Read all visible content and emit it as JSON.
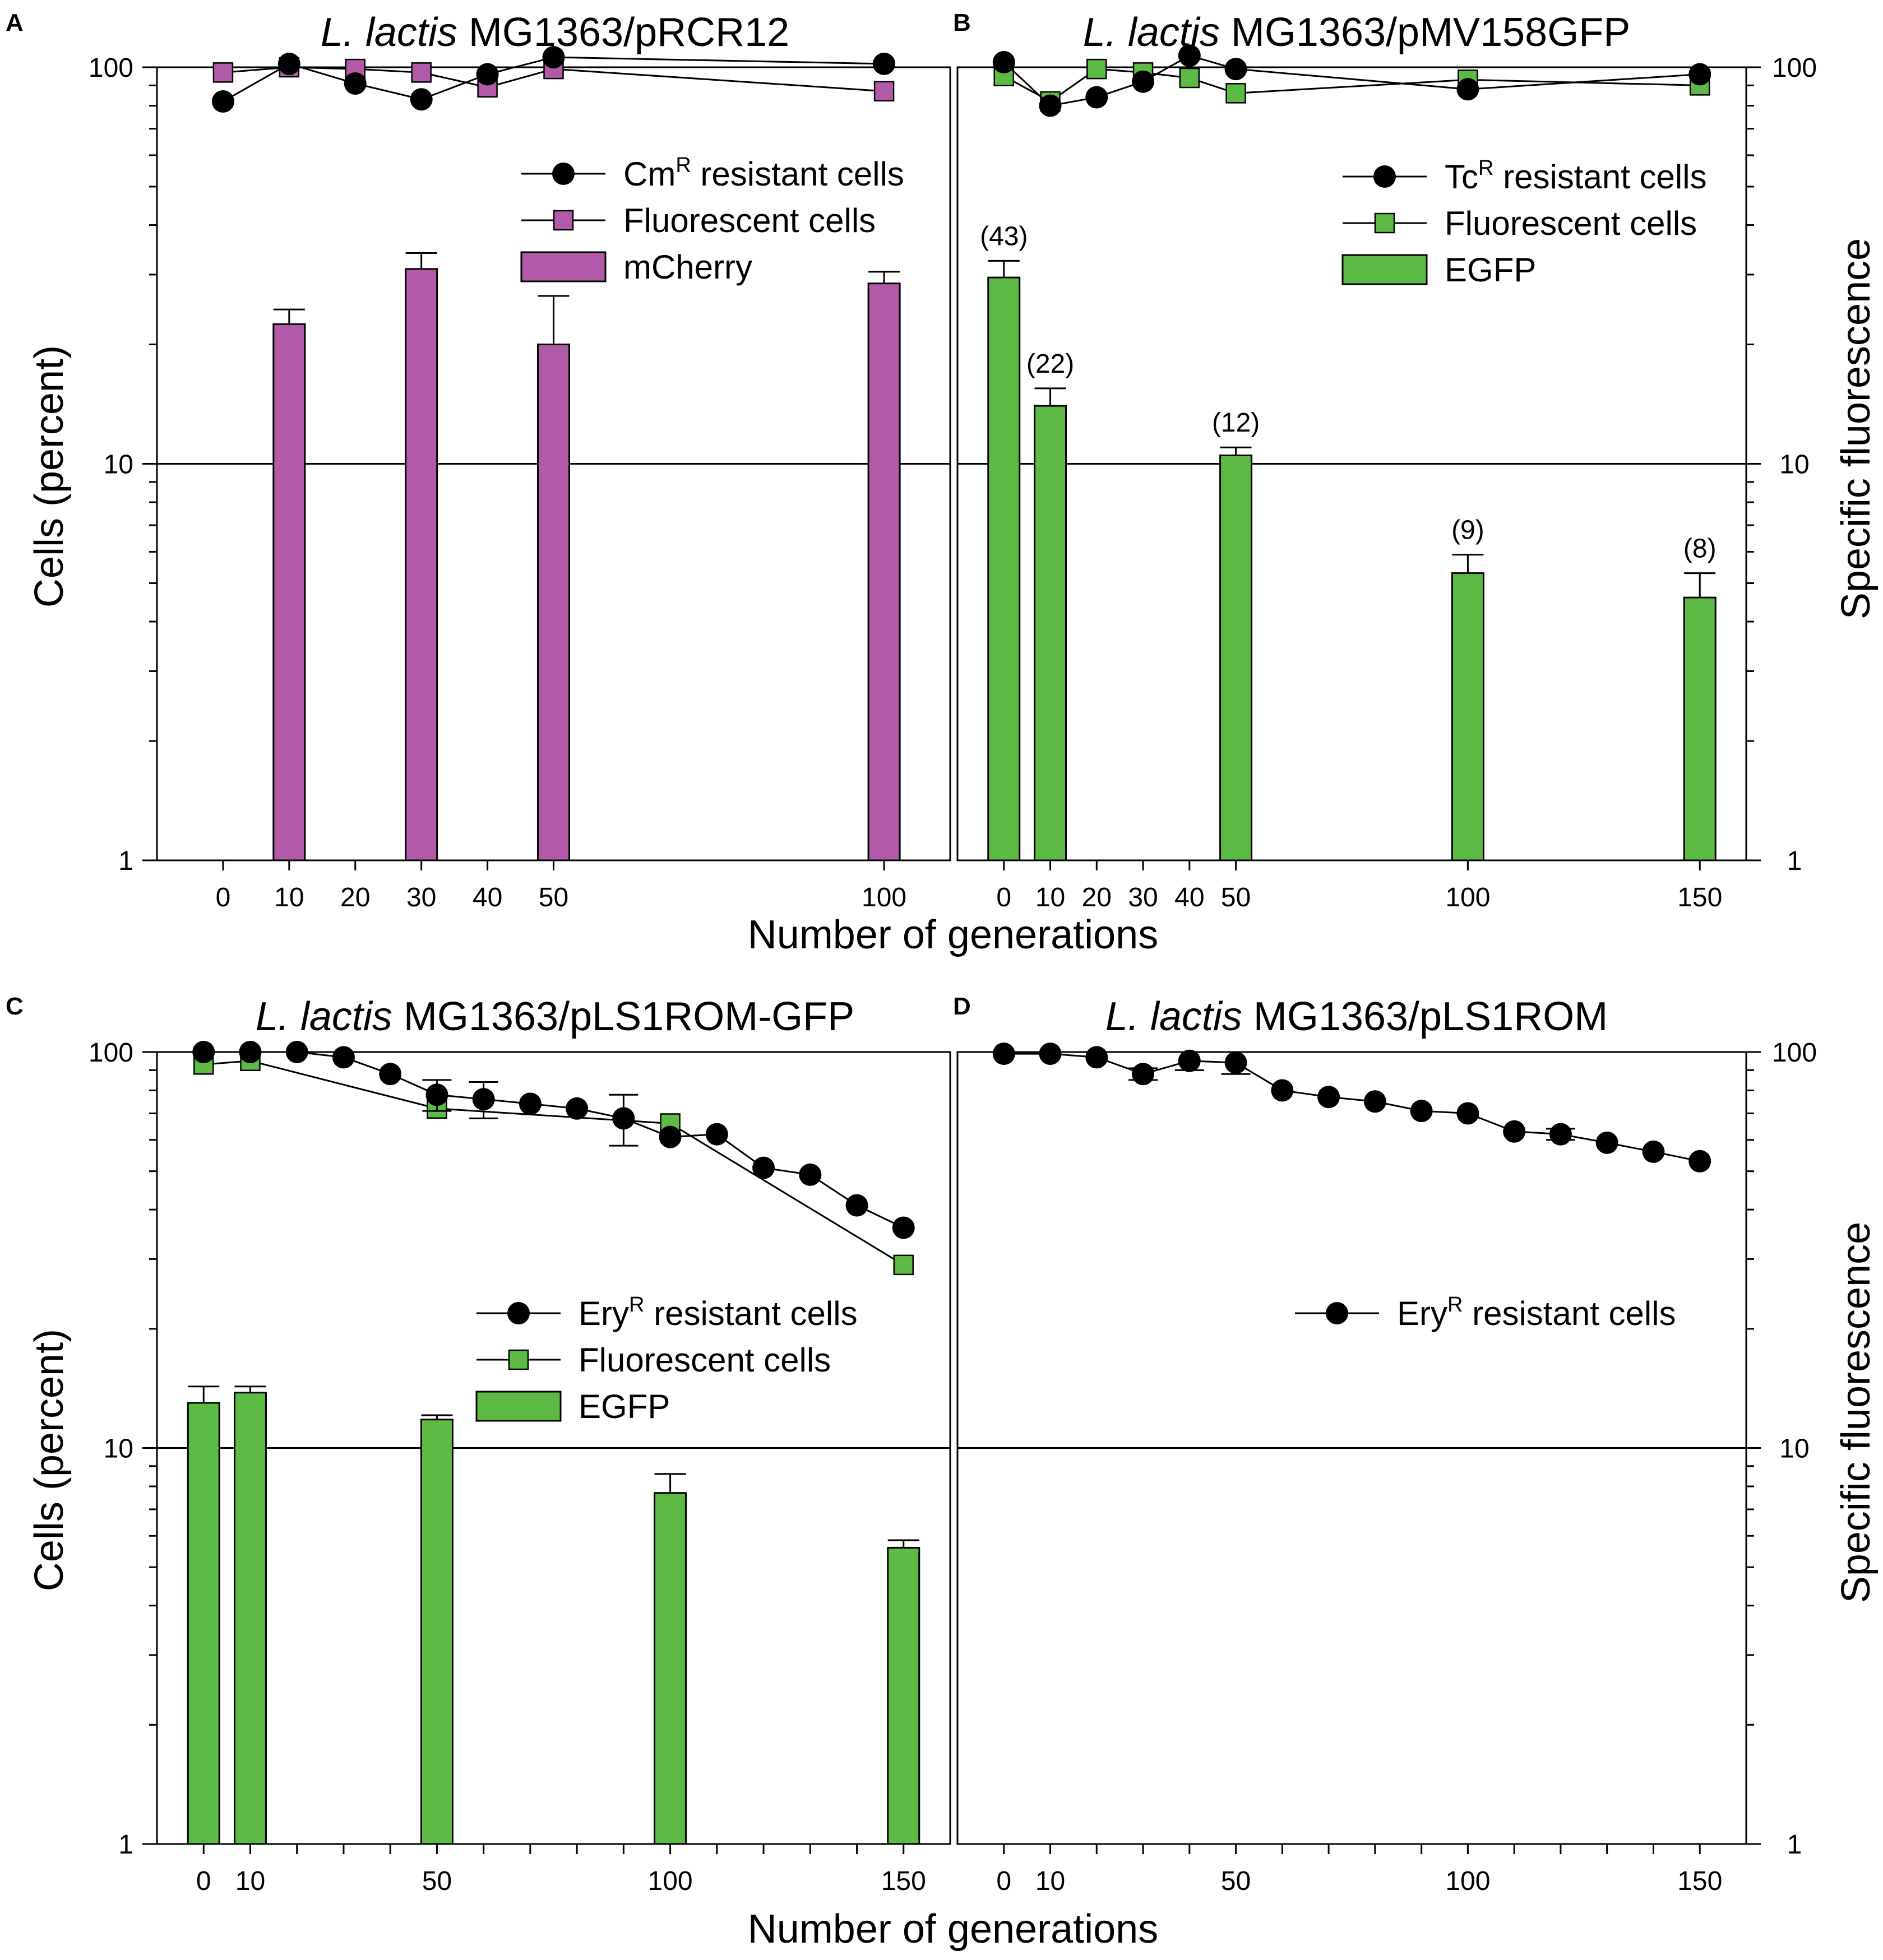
{
  "colors": {
    "magenta": "#b05aa8",
    "green": "#5dbb45",
    "black": "#000000"
  },
  "figure": {
    "xlabel_top": "Number of generations",
    "xlabel_bottom": "Number of generations",
    "ylabel_left_top": "Cells (percent)",
    "ylabel_left_bottom": "Cells (percent)",
    "ylabel_right_top": "Specific fluorescence",
    "ylabel_right_bottom": "Specific fluorescence"
  },
  "chart_data": [
    {
      "id": "A",
      "letter": "A",
      "type": "bar",
      "title": {
        "italic": "L. lactis",
        "rest": " MG1363/pRCR12"
      },
      "yscale": "log",
      "ylim": [
        1,
        100
      ],
      "yticklabels": [
        "1",
        "10",
        "100"
      ],
      "xlim": [
        -10,
        110
      ],
      "xticks": [
        0,
        10,
        20,
        30,
        40,
        50,
        100
      ],
      "xticklabels": [
        "0",
        "10",
        "20",
        "30",
        "40",
        "50",
        "100"
      ],
      "gridlines": [
        10,
        100
      ],
      "legend": [
        {
          "kind": "circle",
          "pre": "Cm",
          "sup": "R",
          "post": " resistant cells"
        },
        {
          "kind": "square",
          "pre": "Fluorescent cells",
          "sup": "",
          "post": ""
        },
        {
          "kind": "bar",
          "pre": "mCherry",
          "sup": "",
          "post": ""
        }
      ],
      "bar_color": "#b05aa8",
      "bars": [
        {
          "x": 10,
          "value": 22.5,
          "err": 2
        },
        {
          "x": 30,
          "value": 31,
          "err": 3
        },
        {
          "x": 50,
          "value": 20,
          "err": 6.5
        },
        {
          "x": 100,
          "value": 28.5,
          "err": 2
        }
      ],
      "series": [
        {
          "name": "resistant cells",
          "marker": "circle",
          "x": [
            0,
            10,
            20,
            30,
            40,
            50,
            100
          ],
          "y": [
            82,
            102,
            91,
            83,
            96,
            106,
            102
          ]
        },
        {
          "name": "Fluorescent cells",
          "marker": "square",
          "color": "#b05aa8",
          "x": [
            0,
            10,
            20,
            30,
            40,
            50,
            100
          ],
          "y": [
            97,
            100,
            99,
            97,
            89,
            99,
            87
          ]
        }
      ]
    },
    {
      "id": "B",
      "letter": "B",
      "type": "bar",
      "title": {
        "italic": "L. lactis",
        "rest": " MG1363/pMV158GFP"
      },
      "yscale": "log",
      "ylim": [
        1,
        100
      ],
      "yticklabels": [
        "1",
        "10",
        "100"
      ],
      "xlim": [
        -10,
        160
      ],
      "xticks": [
        0,
        10,
        20,
        30,
        40,
        50,
        100,
        150
      ],
      "xticklabels": [
        "0",
        "10",
        "20",
        "30",
        "40",
        "50",
        "100",
        "150"
      ],
      "gridlines": [
        10,
        100
      ],
      "legend": [
        {
          "kind": "circle",
          "pre": "Tc",
          "sup": "R",
          "post": " resistant cells"
        },
        {
          "kind": "square",
          "pre": "Fluorescent cells",
          "sup": "",
          "post": ""
        },
        {
          "kind": "bar",
          "pre": "EGFP",
          "sup": "",
          "post": ""
        }
      ],
      "bar_color": "#5dbb45",
      "bars": [
        {
          "x": 0,
          "value": 29.5,
          "err": 3,
          "label": "(43)"
        },
        {
          "x": 10,
          "value": 14,
          "err": 1.5,
          "label": "(22)"
        },
        {
          "x": 50,
          "value": 10.5,
          "err": 0.5,
          "label": "(12)"
        },
        {
          "x": 100,
          "value": 5.3,
          "err": 0.6,
          "label": "(9)"
        },
        {
          "x": 150,
          "value": 4.6,
          "err": 0.7,
          "label": "(8)"
        }
      ],
      "series": [
        {
          "name": "resistant cells",
          "marker": "circle",
          "x": [
            0,
            10,
            20,
            30,
            40,
            50,
            100,
            150
          ],
          "y": [
            103,
            80,
            84,
            92,
            107,
            99,
            88,
            96
          ]
        },
        {
          "name": "Fluorescent cells",
          "marker": "square",
          "color": "#5dbb45",
          "x": [
            0,
            10,
            20,
            30,
            40,
            50,
            100,
            150
          ],
          "y": [
            95,
            82,
            99,
            97,
            94,
            86,
            93,
            90
          ]
        }
      ]
    },
    {
      "id": "C",
      "letter": "C",
      "type": "bar",
      "title": {
        "italic": "L. lactis",
        "rest": " MG1363/pLS1ROM-GFP"
      },
      "yscale": "log",
      "ylim": [
        1,
        100
      ],
      "yticklabels": [
        "1",
        "10",
        "100"
      ],
      "xlim": [
        -10,
        160
      ],
      "xticks": [
        0,
        10,
        20,
        30,
        40,
        50,
        60,
        70,
        80,
        90,
        100,
        110,
        120,
        130,
        140,
        150
      ],
      "xticklabels": [
        "0",
        "10",
        "",
        "",
        "",
        "50",
        "",
        "",
        "",
        "",
        "100",
        "",
        "",
        "",
        "",
        "150"
      ],
      "gridlines": [
        10,
        100
      ],
      "legend": [
        {
          "kind": "circle",
          "pre": "Ery",
          "sup": "R",
          "post": " resistant cells"
        },
        {
          "kind": "square",
          "pre": "Fluorescent cells",
          "sup": "",
          "post": ""
        },
        {
          "kind": "bar",
          "pre": "EGFP",
          "sup": "",
          "post": ""
        }
      ],
      "bar_color": "#5dbb45",
      "bars": [
        {
          "x": 0,
          "value": 13,
          "err": 1.3
        },
        {
          "x": 10,
          "value": 13.8,
          "err": 0.5
        },
        {
          "x": 50,
          "value": 11.8,
          "err": 0.3
        },
        {
          "x": 100,
          "value": 7.7,
          "err": 0.9
        },
        {
          "x": 150,
          "value": 5.6,
          "err": 0.25
        }
      ],
      "series": [
        {
          "name": "resistant cells",
          "marker": "circle",
          "x": [
            0,
            10,
            20,
            30,
            40,
            50,
            60,
            70,
            80,
            90,
            100,
            110,
            120,
            130,
            140,
            150
          ],
          "y": [
            100,
            100,
            100,
            97,
            88,
            78,
            76,
            74,
            72,
            68,
            61,
            62,
            51,
            49,
            41,
            36
          ],
          "err": [
            0,
            0,
            0,
            0,
            0,
            7,
            8,
            0,
            0,
            10,
            0,
            0,
            0,
            0,
            0,
            0
          ]
        },
        {
          "name": "Fluorescent cells",
          "marker": "square",
          "color": "#5dbb45",
          "x": [
            0,
            10,
            50,
            100,
            150
          ],
          "y": [
            93,
            95,
            72,
            66,
            29
          ]
        }
      ]
    },
    {
      "id": "D",
      "letter": "D",
      "type": "line",
      "title": {
        "italic": "L. lactis",
        "rest": " MG1363/pLS1ROM"
      },
      "yscale": "log",
      "ylim": [
        1,
        100
      ],
      "yticklabels": [
        "1",
        "10",
        "100"
      ],
      "xlim": [
        -10,
        160
      ],
      "xticks": [
        0,
        10,
        20,
        30,
        40,
        50,
        60,
        70,
        80,
        90,
        100,
        110,
        120,
        130,
        140,
        150
      ],
      "xticklabels": [
        "0",
        "10",
        "",
        "",
        "",
        "50",
        "",
        "",
        "",
        "",
        "100",
        "",
        "",
        "",
        "",
        "150"
      ],
      "gridlines": [
        10,
        100
      ],
      "legend": [
        {
          "kind": "circle",
          "pre": "Ery",
          "sup": "R",
          "post": " resistant cells"
        }
      ],
      "bars": [],
      "series": [
        {
          "name": "resistant cells",
          "marker": "circle",
          "x": [
            0,
            10,
            20,
            30,
            40,
            50,
            60,
            70,
            80,
            90,
            100,
            110,
            120,
            130,
            140,
            150
          ],
          "y": [
            99,
            99,
            97,
            88,
            95,
            94,
            80,
            77,
            75,
            71,
            70,
            63,
            62,
            59,
            56,
            53
          ],
          "err": [
            0,
            0,
            0,
            3,
            5,
            6,
            0,
            0,
            0,
            0,
            0,
            0,
            2,
            0,
            0,
            0
          ]
        }
      ]
    }
  ]
}
